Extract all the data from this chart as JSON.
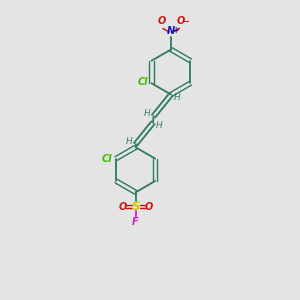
{
  "bg_color": "#e4e4e4",
  "ring_color": "#2d7a5a",
  "bond_color": "#2d7a5a",
  "cl_color": "#44bb00",
  "no2_n_color": "#1111cc",
  "no2_o_color": "#cc1111",
  "s_color": "#cccc00",
  "so2_o_color": "#cc1111",
  "f_color": "#cc22cc",
  "h_color": "#3a7a6a",
  "figsize": [
    3.0,
    3.0
  ],
  "dpi": 100,
  "xlim": [
    0,
    10
  ],
  "ylim": [
    0,
    10
  ]
}
